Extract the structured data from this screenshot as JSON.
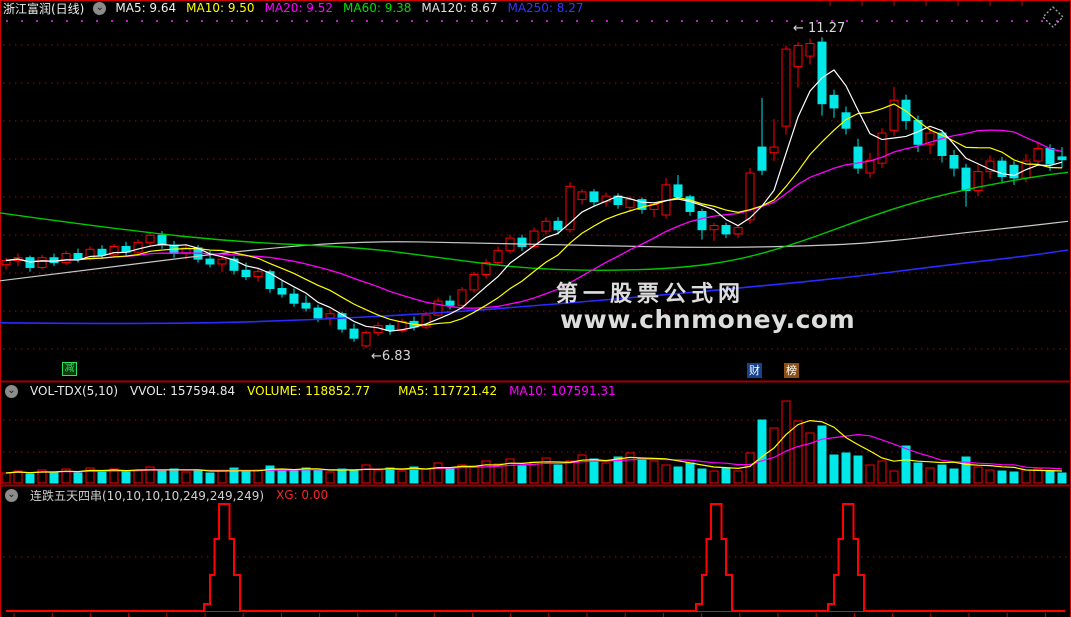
{
  "window": {
    "title": "浙江富润(日线)"
  },
  "colors": {
    "up": "#ff0000",
    "down": "#00e8e8",
    "grid": "#b40000",
    "frame": "#cc0000",
    "divider": "#a00000",
    "ma5": "#ffffff",
    "ma10": "#ffff00",
    "ma20": "#ff00ff",
    "ma60": "#00c800",
    "ma120": "#c8c8c8",
    "ma250": "#2a2aff",
    "watermark": "#ffff00",
    "signal": "#ff0000",
    "dotted_top": "#ff22ff"
  },
  "top_bar": {
    "ma_labels": [
      {
        "text": "MA5: 9.64",
        "color": "#f0f0f0"
      },
      {
        "text": "MA10: 9.50",
        "color": "#ffff00"
      },
      {
        "text": "MA20: 9.52",
        "color": "#ff00ff"
      },
      {
        "text": "MA60: 9.38",
        "color": "#00dd00"
      },
      {
        "text": "MA120: 8.67",
        "color": "#e0e0e0"
      },
      {
        "text": "MA250: 8.27",
        "color": "#3535ff"
      }
    ]
  },
  "main_chart": {
    "high_annotation": "← 11.27",
    "low_annotation": "←6.83",
    "badges": {
      "jian": "减",
      "cai": "财",
      "bang": "榜"
    },
    "watermark": {
      "line1": "第一股票公式网",
      "line2": "www.chnmoney.com"
    }
  },
  "volume_panel": {
    "labels": [
      {
        "text": "VOL-TDX(5,10)",
        "color": "#e8e8e8"
      },
      {
        "text": "VVOL: 157594.84",
        "color": "#e8e8e8"
      },
      {
        "text": "VOLUME: 118852.77",
        "color": "#ffff00"
      },
      {
        "text": "MA5: 117721.42",
        "color": "#ffff00"
      },
      {
        "text": "MA10: 107591.31",
        "color": "#ff00ff"
      }
    ]
  },
  "signal_panel": {
    "name": "连跌五天四串(10,10,10,10,249,249,249)",
    "xg": "XG: 0.00"
  },
  "chart_data": {
    "type": "candlestick",
    "price_low": 6.83,
    "price_high": 11.27,
    "candles": [
      [
        8.02,
        8.12,
        7.95,
        8.08
      ],
      [
        8.08,
        8.18,
        8.0,
        8.12
      ],
      [
        8.12,
        8.15,
        7.92,
        7.98
      ],
      [
        7.98,
        8.16,
        7.95,
        8.12
      ],
      [
        8.12,
        8.18,
        8.0,
        8.05
      ],
      [
        8.05,
        8.22,
        8.02,
        8.18
      ],
      [
        8.18,
        8.25,
        8.05,
        8.1
      ],
      [
        8.1,
        8.28,
        8.08,
        8.24
      ],
      [
        8.24,
        8.3,
        8.1,
        8.16
      ],
      [
        8.16,
        8.32,
        8.12,
        8.28
      ],
      [
        8.28,
        8.35,
        8.15,
        8.2
      ],
      [
        8.2,
        8.38,
        8.18,
        8.34
      ],
      [
        8.34,
        8.48,
        8.28,
        8.44
      ],
      [
        8.44,
        8.5,
        8.25,
        8.3
      ],
      [
        8.3,
        8.36,
        8.12,
        8.18
      ],
      [
        8.18,
        8.3,
        8.1,
        8.26
      ],
      [
        8.26,
        8.3,
        8.05,
        8.1
      ],
      [
        8.1,
        8.22,
        7.98,
        8.03
      ],
      [
        8.03,
        8.15,
        7.92,
        8.1
      ],
      [
        8.1,
        8.14,
        7.88,
        7.94
      ],
      [
        7.94,
        8.05,
        7.8,
        7.85
      ],
      [
        7.85,
        7.98,
        7.78,
        7.92
      ],
      [
        7.92,
        7.95,
        7.62,
        7.68
      ],
      [
        7.68,
        7.8,
        7.55,
        7.6
      ],
      [
        7.6,
        7.68,
        7.42,
        7.47
      ],
      [
        7.47,
        7.58,
        7.35,
        7.4
      ],
      [
        7.4,
        7.45,
        7.2,
        7.26
      ],
      [
        7.26,
        7.38,
        7.15,
        7.32
      ],
      [
        7.32,
        7.35,
        7.05,
        7.1
      ],
      [
        7.1,
        7.18,
        6.92,
        6.97
      ],
      [
        6.86,
        7.08,
        6.83,
        7.05
      ],
      [
        7.05,
        7.2,
        7.0,
        7.15
      ],
      [
        7.15,
        7.18,
        7.02,
        7.08
      ],
      [
        7.08,
        7.25,
        7.05,
        7.21
      ],
      [
        7.21,
        7.28,
        7.08,
        7.13
      ],
      [
        7.13,
        7.35,
        7.1,
        7.3
      ],
      [
        7.3,
        7.55,
        7.28,
        7.5
      ],
      [
        7.5,
        7.58,
        7.38,
        7.44
      ],
      [
        7.44,
        7.7,
        7.4,
        7.66
      ],
      [
        7.66,
        7.92,
        7.62,
        7.88
      ],
      [
        7.88,
        8.1,
        7.82,
        8.05
      ],
      [
        8.05,
        8.28,
        8.0,
        8.22
      ],
      [
        8.22,
        8.45,
        8.18,
        8.4
      ],
      [
        8.4,
        8.45,
        8.22,
        8.28
      ],
      [
        8.28,
        8.55,
        8.25,
        8.5
      ],
      [
        8.5,
        8.7,
        8.45,
        8.64
      ],
      [
        8.64,
        8.7,
        8.45,
        8.52
      ],
      [
        8.52,
        9.2,
        8.48,
        9.14
      ],
      [
        8.95,
        9.1,
        8.88,
        9.06
      ],
      [
        9.06,
        9.1,
        8.86,
        8.92
      ],
      [
        8.92,
        9.05,
        8.85,
        9.0
      ],
      [
        9.0,
        9.04,
        8.82,
        8.88
      ],
      [
        8.84,
        9.0,
        8.78,
        8.95
      ],
      [
        8.95,
        8.98,
        8.75,
        8.81
      ],
      [
        8.81,
        8.92,
        8.7,
        8.88
      ],
      [
        8.73,
        9.26,
        8.68,
        9.16
      ],
      [
        9.16,
        9.3,
        8.95,
        8.99
      ],
      [
        8.99,
        9.02,
        8.72,
        8.78
      ],
      [
        8.78,
        8.82,
        8.38,
        8.52
      ],
      [
        8.52,
        8.62,
        8.36,
        8.58
      ],
      [
        8.58,
        8.62,
        8.4,
        8.46
      ],
      [
        8.46,
        8.58,
        8.4,
        8.55
      ],
      [
        8.66,
        9.4,
        8.6,
        9.33
      ],
      [
        9.7,
        10.4,
        9.3,
        9.37
      ],
      [
        9.62,
        10.1,
        9.5,
        9.7
      ],
      [
        10.0,
        11.15,
        9.88,
        11.1
      ],
      [
        10.85,
        11.2,
        10.55,
        11.15
      ],
      [
        11.0,
        11.25,
        10.88,
        11.18
      ],
      [
        11.2,
        11.27,
        10.15,
        10.32
      ],
      [
        10.44,
        10.52,
        10.12,
        10.26
      ],
      [
        10.19,
        10.28,
        9.88,
        9.97
      ],
      [
        9.7,
        9.82,
        9.32,
        9.4
      ],
      [
        9.33,
        9.62,
        9.26,
        9.51
      ],
      [
        9.47,
        9.97,
        9.4,
        9.9
      ],
      [
        9.94,
        10.56,
        9.86,
        10.37
      ],
      [
        10.37,
        10.45,
        9.95,
        10.08
      ],
      [
        10.08,
        10.15,
        9.63,
        9.74
      ],
      [
        9.74,
        10.0,
        9.6,
        9.9
      ],
      [
        9.9,
        9.95,
        9.48,
        9.58
      ],
      [
        9.58,
        9.66,
        9.28,
        9.4
      ],
      [
        9.4,
        9.46,
        8.85,
        9.08
      ],
      [
        9.08,
        9.45,
        9.0,
        9.35
      ],
      [
        9.35,
        9.58,
        9.25,
        9.5
      ],
      [
        9.5,
        9.56,
        9.18,
        9.28
      ],
      [
        9.44,
        9.5,
        9.16,
        9.26
      ],
      [
        9.26,
        9.6,
        9.2,
        9.5
      ],
      [
        9.5,
        9.78,
        9.45,
        9.68
      ],
      [
        9.68,
        9.74,
        9.36,
        9.46
      ],
      [
        9.56,
        9.7,
        9.4,
        9.52
      ]
    ],
    "volume_rel": [
      10,
      12,
      9,
      13,
      11,
      14,
      10,
      15,
      12,
      14,
      11,
      13,
      16,
      12,
      14,
      11,
      13,
      10,
      12,
      15,
      11,
      13,
      17,
      14,
      12,
      15,
      13,
      11,
      14,
      12,
      18,
      13,
      15,
      12,
      16,
      14,
      20,
      15,
      18,
      16,
      22,
      19,
      24,
      17,
      21,
      25,
      18,
      22,
      28,
      24,
      20,
      26,
      30,
      25,
      22,
      18,
      16,
      20,
      14,
      12,
      15,
      12,
      30,
      63,
      55,
      82,
      62,
      50,
      57,
      28,
      30,
      27,
      18,
      22,
      12,
      37,
      20,
      15,
      18,
      14,
      26,
      16,
      13,
      12,
      11,
      13,
      14,
      12,
      10
    ],
    "overlays": {
      "ma60": [
        [
          0,
          8.76
        ],
        [
          120,
          8.52
        ],
        [
          240,
          8.34
        ],
        [
          360,
          8.27
        ],
        [
          440,
          8.12
        ],
        [
          520,
          7.97
        ],
        [
          600,
          7.93
        ],
        [
          680,
          7.97
        ],
        [
          740,
          8.09
        ],
        [
          800,
          8.34
        ],
        [
          860,
          8.66
        ],
        [
          920,
          8.94
        ],
        [
          980,
          9.14
        ],
        [
          1040,
          9.29
        ],
        [
          1068,
          9.34
        ]
      ],
      "ma120": [
        [
          0,
          7.79
        ],
        [
          120,
          8.0
        ],
        [
          240,
          8.22
        ],
        [
          360,
          8.36
        ],
        [
          480,
          8.33
        ],
        [
          600,
          8.29
        ],
        [
          720,
          8.26
        ],
        [
          840,
          8.3
        ],
        [
          900,
          8.37
        ],
        [
          960,
          8.47
        ],
        [
          1020,
          8.56
        ],
        [
          1068,
          8.64
        ]
      ],
      "ma250": [
        [
          0,
          7.19
        ],
        [
          150,
          7.17
        ],
        [
          300,
          7.22
        ],
        [
          450,
          7.34
        ],
        [
          540,
          7.44
        ],
        [
          650,
          7.57
        ],
        [
          750,
          7.7
        ],
        [
          850,
          7.84
        ],
        [
          950,
          8.02
        ],
        [
          1020,
          8.13
        ],
        [
          1068,
          8.23
        ]
      ]
    },
    "signal": {
      "spike_candle_indices": [
        18,
        59,
        70
      ],
      "xg_value": 0.0
    }
  }
}
